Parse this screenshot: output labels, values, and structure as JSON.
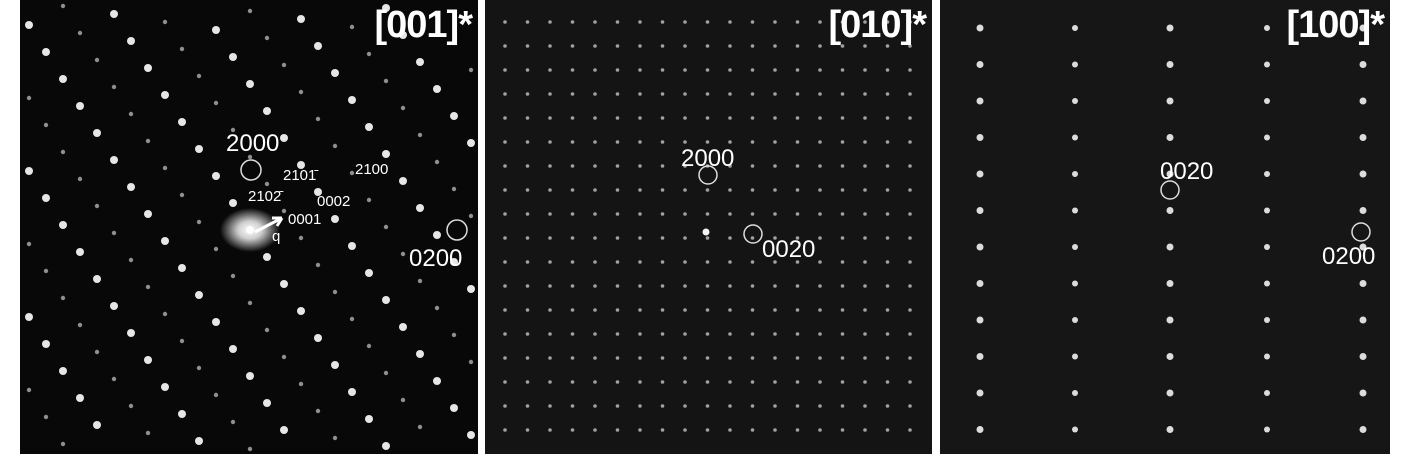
{
  "panels": [
    {
      "zone_axis": "[001]*",
      "labels": [
        "2000",
        "2101̄",
        "2100",
        "2102̄",
        "0002",
        "0001",
        "q",
        "0200"
      ]
    },
    {
      "zone_axis": "[010]*",
      "labels": [
        "2000",
        "0020"
      ]
    },
    {
      "zone_axis": "[100]*",
      "labels": [
        "0020",
        "0200"
      ]
    }
  ],
  "colors": {
    "background": "#0c0c0c",
    "spot": "#ffffff",
    "label": "#ffffff"
  }
}
